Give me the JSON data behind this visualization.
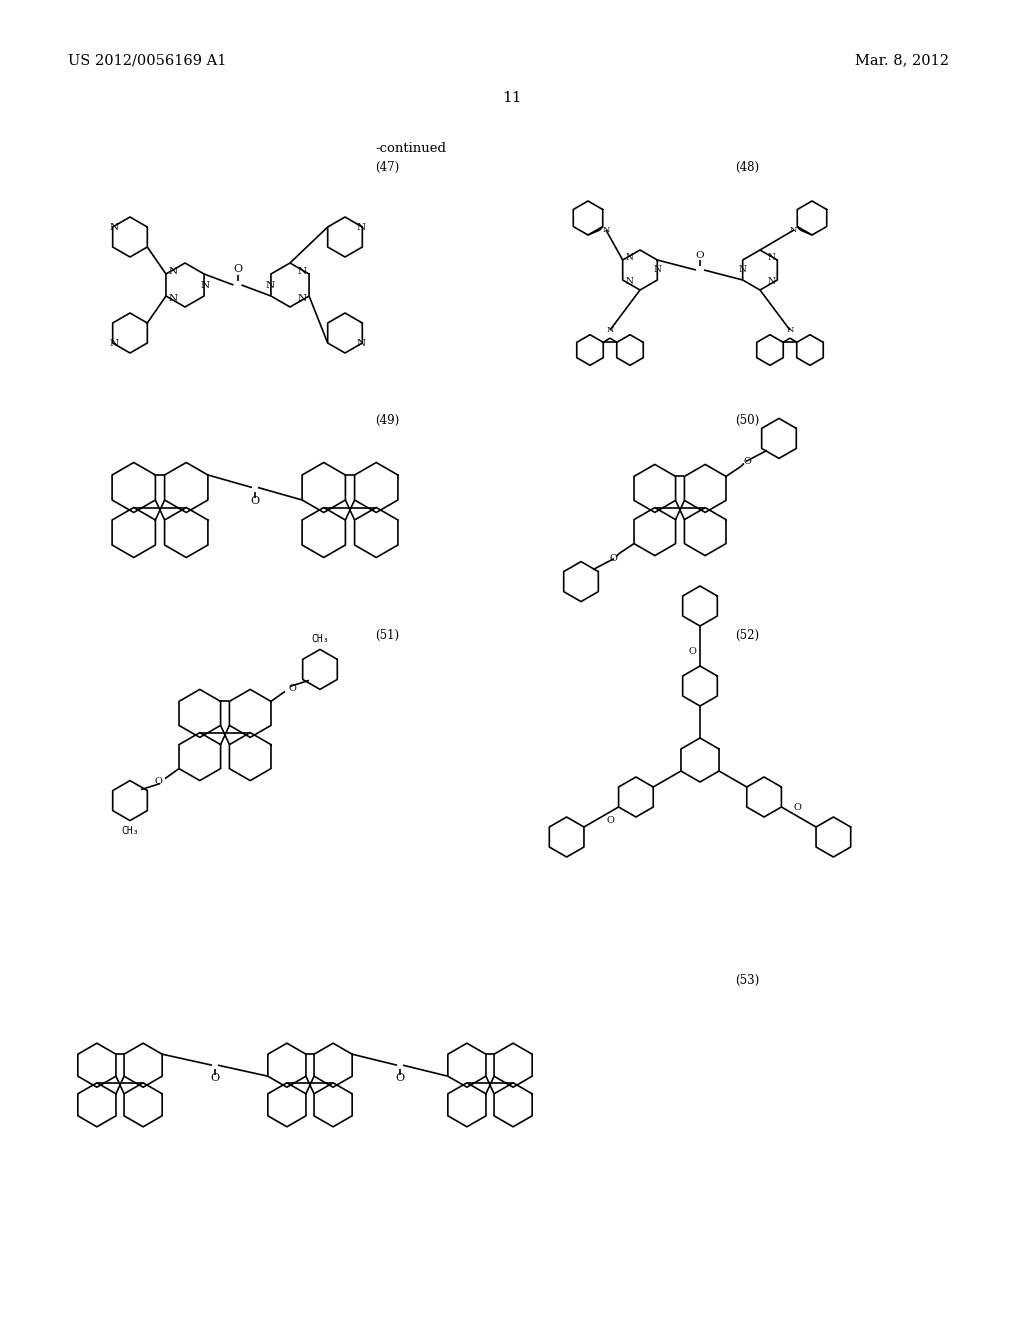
{
  "patent_number": "US 2012/0056169 A1",
  "patent_date": "Mar. 8, 2012",
  "page_number": "11",
  "continued_label": "-continued",
  "background_color": "#ffffff",
  "text_color": "#000000",
  "figsize": [
    10.24,
    13.2
  ],
  "dpi": 100
}
